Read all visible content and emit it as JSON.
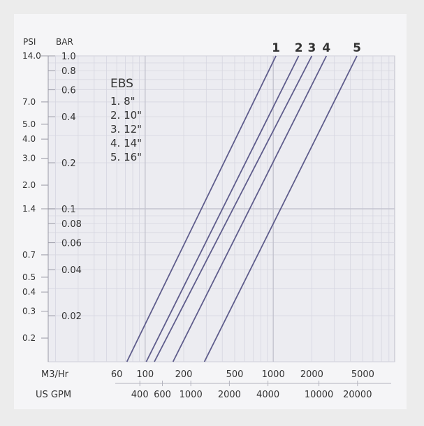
{
  "chart_data": {
    "type": "line",
    "title": "",
    "left_axis": {
      "psi_label": "PSI",
      "bar_label": "BAR",
      "psi_ticks": [
        "14.0",
        "7.0",
        "5.0",
        "4.0",
        "3.0",
        "2.0",
        "1.4",
        "0.7",
        "0.5",
        "0.4",
        "0.3",
        "0.2"
      ],
      "psi_values": [
        14.0,
        7.0,
        5.0,
        4.0,
        3.0,
        2.0,
        1.4,
        0.7,
        0.5,
        0.4,
        0.3,
        0.2
      ],
      "bar_ticks": [
        "1.0",
        "0.8",
        "0.6",
        "0.4",
        "0.2",
        "0.1",
        "0.08",
        "0.06",
        "0.04",
        "0.02"
      ],
      "bar_values": [
        1.0,
        0.8,
        0.6,
        0.4,
        0.2,
        0.1,
        0.08,
        0.06,
        0.04,
        0.02
      ],
      "scale": "log",
      "ylim_bar": [
        0.01,
        1.0
      ]
    },
    "bottom_axis": {
      "m3hr_label": "M3/Hr",
      "m3hr_ticks": [
        "60",
        "100",
        "200",
        "500",
        "1000",
        "2000",
        "5000"
      ],
      "m3hr_values": [
        60,
        100,
        200,
        500,
        1000,
        2000,
        5000
      ],
      "gpm_label": "US GPM",
      "gpm_ticks": [
        "400",
        "600",
        "1000",
        "2000",
        "4000",
        "10000",
        "20000"
      ],
      "gpm_values": [
        400,
        600,
        1000,
        2000,
        4000,
        10000,
        20000
      ],
      "scale": "log",
      "xlim_m3hr": [
        50,
        5000
      ]
    },
    "grid": true,
    "legend_title": "EBS",
    "legend_items": [
      "1. 8\"",
      "2. 10\"",
      "3. 12\"",
      "4. 14\"",
      "5. 16\""
    ],
    "series": [
      {
        "name": "1",
        "flow_m3hr": [
          72,
          1050
        ],
        "pressure_bar": [
          0.01,
          1.0
        ]
      },
      {
        "name": "2",
        "flow_m3hr": [
          102,
          1580
        ],
        "pressure_bar": [
          0.01,
          1.0
        ]
      },
      {
        "name": "3",
        "flow_m3hr": [
          118,
          2000
        ],
        "pressure_bar": [
          0.01,
          1.0
        ]
      },
      {
        "name": "4",
        "flow_m3hr": [
          165,
          2600
        ],
        "pressure_bar": [
          0.01,
          1.0
        ]
      },
      {
        "name": "5",
        "flow_m3hr": [
          290,
          4500
        ],
        "pressure_bar": [
          0.01,
          1.0
        ]
      }
    ],
    "colors": {
      "line": "#5f5d8c",
      "grid_major": "#c4c4d0",
      "grid_minor": "#d6d6e0",
      "plot_bg": "#ececf1",
      "page_bg": "#ececec"
    }
  }
}
